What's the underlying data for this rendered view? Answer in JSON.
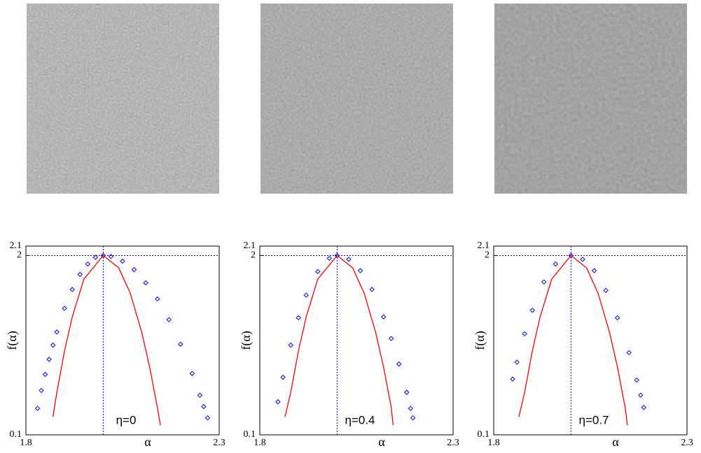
{
  "chart_data": [
    {
      "type": "scatter",
      "annotation": "η=0",
      "xlabel": "α",
      "ylabel": "f(α)",
      "xlim": [
        1.8,
        2.3
      ],
      "ylim": [
        0.1,
        2.1
      ],
      "xticks": [
        1.8,
        2.3
      ],
      "yticks": [
        0.1,
        2,
        2.1
      ],
      "hline": 2,
      "vline": 2,
      "series": [
        {
          "color": "#0000ff",
          "marker": "diamond",
          "x": [
            1.83,
            1.84,
            1.85,
            1.86,
            1.87,
            1.88,
            1.9,
            1.92,
            1.94,
            1.96,
            1.98,
            2.0,
            2.02,
            2.05,
            2.08,
            2.11,
            2.14,
            2.17,
            2.2,
            2.23,
            2.25,
            2.26,
            2.27
          ],
          "values": [
            0.38,
            0.57,
            0.74,
            0.9,
            1.05,
            1.19,
            1.44,
            1.64,
            1.8,
            1.91,
            1.98,
            2.0,
            1.99,
            1.94,
            1.85,
            1.71,
            1.54,
            1.32,
            1.06,
            0.75,
            0.52,
            0.4,
            0.28
          ]
        },
        {
          "color": "#ff0000",
          "marker": "line",
          "x": [
            1.87,
            1.88,
            1.9,
            1.92,
            1.95,
            2.0,
            2.04,
            2.07,
            2.1,
            2.12,
            2.14,
            2.148
          ],
          "values": [
            0.29,
            0.55,
            0.99,
            1.35,
            1.75,
            2.0,
            1.87,
            1.6,
            1.18,
            0.82,
            0.39,
            0.2
          ]
        }
      ]
    },
    {
      "type": "scatter",
      "annotation": "η=0.4",
      "xlabel": "α",
      "ylabel": "f(α)",
      "xlim": [
        1.8,
        2.3
      ],
      "ylim": [
        0.1,
        2.1
      ],
      "xticks": [
        1.8,
        2.3
      ],
      "yticks": [
        0.1,
        2,
        2.1
      ],
      "hline": 2,
      "vline": 2,
      "series": [
        {
          "color": "#0000ff",
          "marker": "diamond",
          "x": [
            1.847,
            1.86,
            1.88,
            1.9,
            1.92,
            1.95,
            1.98,
            2.0,
            2.03,
            2.06,
            2.09,
            2.12,
            2.14,
            2.16,
            2.18,
            2.19,
            2.196
          ],
          "values": [
            0.45,
            0.71,
            1.05,
            1.34,
            1.58,
            1.83,
            1.97,
            2.0,
            1.96,
            1.84,
            1.64,
            1.35,
            1.12,
            0.85,
            0.55,
            0.38,
            0.28
          ]
        },
        {
          "color": "#ff0000",
          "marker": "line",
          "x": [
            1.865,
            1.88,
            1.9,
            1.92,
            1.95,
            2.0,
            2.04,
            2.07,
            2.1,
            2.12,
            2.14,
            2.145
          ],
          "values": [
            0.29,
            0.55,
            0.99,
            1.35,
            1.75,
            2.0,
            1.87,
            1.6,
            1.18,
            0.82,
            0.39,
            0.2
          ]
        }
      ]
    },
    {
      "type": "scatter",
      "annotation": "η=0.7",
      "xlabel": "α",
      "ylabel": "f(α)",
      "xlim": [
        1.8,
        2.3
      ],
      "ylim": [
        0.1,
        2.1
      ],
      "xticks": [
        1.8,
        2.3
      ],
      "yticks": [
        0.1,
        2,
        2.1
      ],
      "hline": 2,
      "vline": 2,
      "series": [
        {
          "color": "#0000ff",
          "marker": "diamond",
          "x": [
            1.849,
            1.86,
            1.88,
            1.9,
            1.93,
            1.96,
            2.0,
            2.03,
            2.06,
            2.09,
            2.12,
            2.15,
            2.17,
            2.18,
            2.188
          ],
          "values": [
            0.69,
            0.87,
            1.17,
            1.42,
            1.72,
            1.91,
            2.0,
            1.96,
            1.84,
            1.63,
            1.34,
            0.97,
            0.68,
            0.52,
            0.39
          ]
        },
        {
          "color": "#ff0000",
          "marker": "line",
          "x": [
            1.865,
            1.88,
            1.9,
            1.92,
            1.95,
            2.0,
            2.04,
            2.07,
            2.1,
            2.12,
            2.14,
            2.146
          ],
          "values": [
            0.29,
            0.55,
            0.99,
            1.35,
            1.75,
            2.0,
            1.87,
            1.6,
            1.18,
            0.82,
            0.39,
            0.2
          ]
        }
      ]
    }
  ]
}
